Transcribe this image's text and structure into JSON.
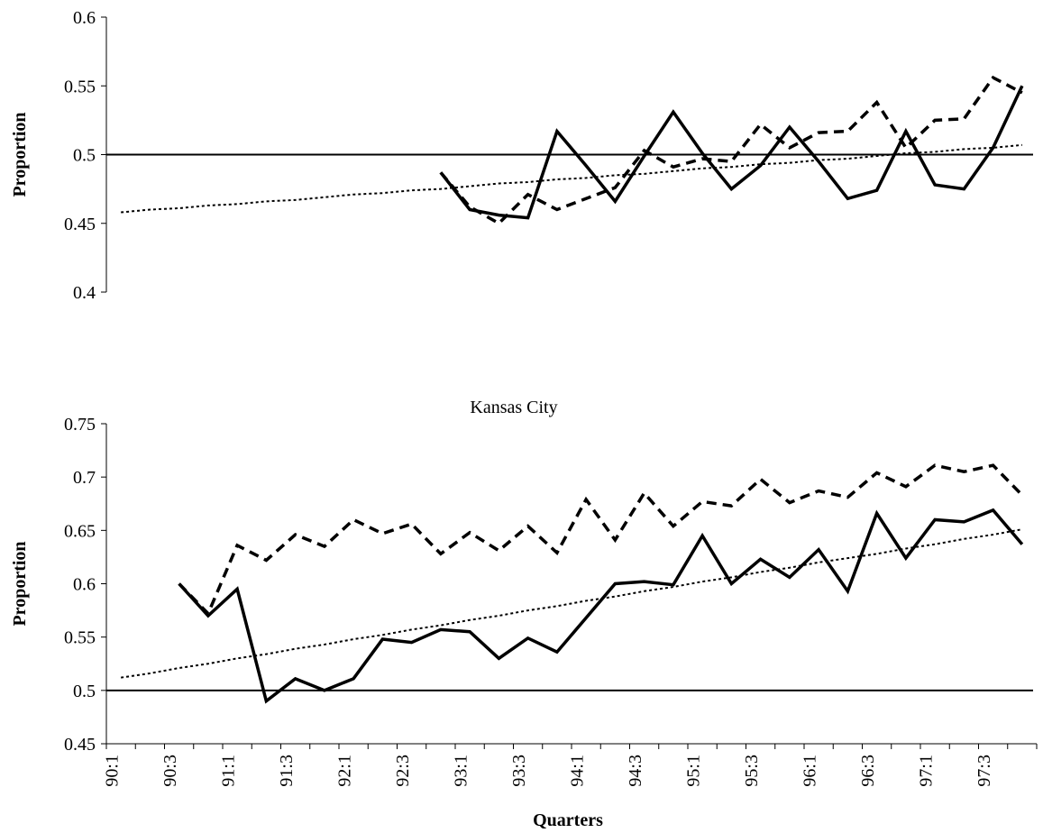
{
  "chart_data": [
    {
      "type": "line",
      "y_label": "Proportion",
      "ylim": [
        0.4,
        0.6
      ],
      "yticks": [
        0.4,
        0.45,
        0.5,
        0.55,
        0.6
      ],
      "reference_line": 0.5,
      "x_axis": false,
      "series": [
        {
          "style": "solid",
          "color": "#000000",
          "values": [
            null,
            null,
            null,
            null,
            null,
            null,
            null,
            null,
            null,
            null,
            null,
            0.487,
            0.46,
            0.456,
            0.454,
            0.517,
            0.492,
            0.466,
            0.499,
            0.531,
            0.501,
            0.475,
            0.492,
            0.52,
            0.495,
            0.468,
            0.474,
            0.517,
            0.478,
            0.475,
            0.505,
            0.55
          ]
        },
        {
          "style": "dashed",
          "color": "#000000",
          "values": [
            null,
            null,
            null,
            null,
            null,
            null,
            null,
            null,
            null,
            null,
            null,
            0.487,
            0.462,
            0.45,
            0.471,
            0.46,
            0.468,
            0.476,
            0.503,
            0.491,
            0.497,
            0.495,
            0.522,
            0.505,
            0.516,
            0.517,
            0.538,
            0.505,
            0.525,
            0.526,
            0.556,
            0.545
          ]
        },
        {
          "style": "dotted",
          "color": "#000000",
          "values": [
            0.458,
            0.46,
            0.461,
            0.463,
            0.464,
            0.466,
            0.467,
            0.469,
            0.471,
            0.472,
            0.474,
            0.475,
            0.477,
            0.479,
            0.48,
            0.482,
            0.483,
            0.485,
            0.486,
            0.488,
            0.49,
            0.491,
            0.493,
            0.494,
            0.496,
            0.497,
            0.499,
            0.501,
            0.502,
            0.504,
            0.505,
            0.507
          ]
        }
      ]
    },
    {
      "type": "line",
      "title": "Kansas City",
      "y_label": "Proportion",
      "x_label": "Quarters",
      "ylim": [
        0.45,
        0.75
      ],
      "yticks": [
        0.45,
        0.5,
        0.55,
        0.6,
        0.65,
        0.7,
        0.75
      ],
      "reference_line": 0.5,
      "x_axis": true,
      "categories": [
        "90:1",
        null,
        "90:3",
        null,
        "91:1",
        null,
        "91:3",
        null,
        "92:1",
        null,
        "92:3",
        null,
        "93:1",
        null,
        "93:3",
        null,
        "94:1",
        null,
        "94:3",
        null,
        "95:1",
        null,
        "95:3",
        null,
        "96:1",
        null,
        "96:3",
        null,
        "97:1",
        null,
        "97:3",
        null
      ],
      "series": [
        {
          "style": "solid",
          "color": "#000000",
          "values": [
            null,
            null,
            0.6,
            0.57,
            0.595,
            0.49,
            0.511,
            0.5,
            0.511,
            0.548,
            0.545,
            0.557,
            0.555,
            0.53,
            0.549,
            0.536,
            0.568,
            0.6,
            0.602,
            0.599,
            0.645,
            0.6,
            0.623,
            0.606,
            0.632,
            0.593,
            0.666,
            0.624,
            0.66,
            0.658,
            0.669,
            0.637
          ]
        },
        {
          "style": "dashed",
          "color": "#000000",
          "values": [
            null,
            null,
            0.6,
            0.572,
            0.636,
            0.622,
            0.646,
            0.635,
            0.66,
            0.647,
            0.656,
            0.628,
            0.648,
            0.631,
            0.654,
            0.629,
            0.679,
            0.641,
            0.685,
            0.654,
            0.677,
            0.673,
            0.698,
            0.676,
            0.687,
            0.681,
            0.704,
            0.691,
            0.711,
            0.705,
            0.711,
            0.683
          ]
        },
        {
          "style": "dotted",
          "color": "#000000",
          "values": [
            0.512,
            0.516,
            0.521,
            0.525,
            0.53,
            0.534,
            0.539,
            0.543,
            0.548,
            0.552,
            0.557,
            0.561,
            0.566,
            0.57,
            0.575,
            0.579,
            0.584,
            0.588,
            0.593,
            0.597,
            0.602,
            0.606,
            0.611,
            0.615,
            0.62,
            0.624,
            0.628,
            0.633,
            0.637,
            0.642,
            0.646,
            0.651
          ]
        }
      ]
    }
  ]
}
